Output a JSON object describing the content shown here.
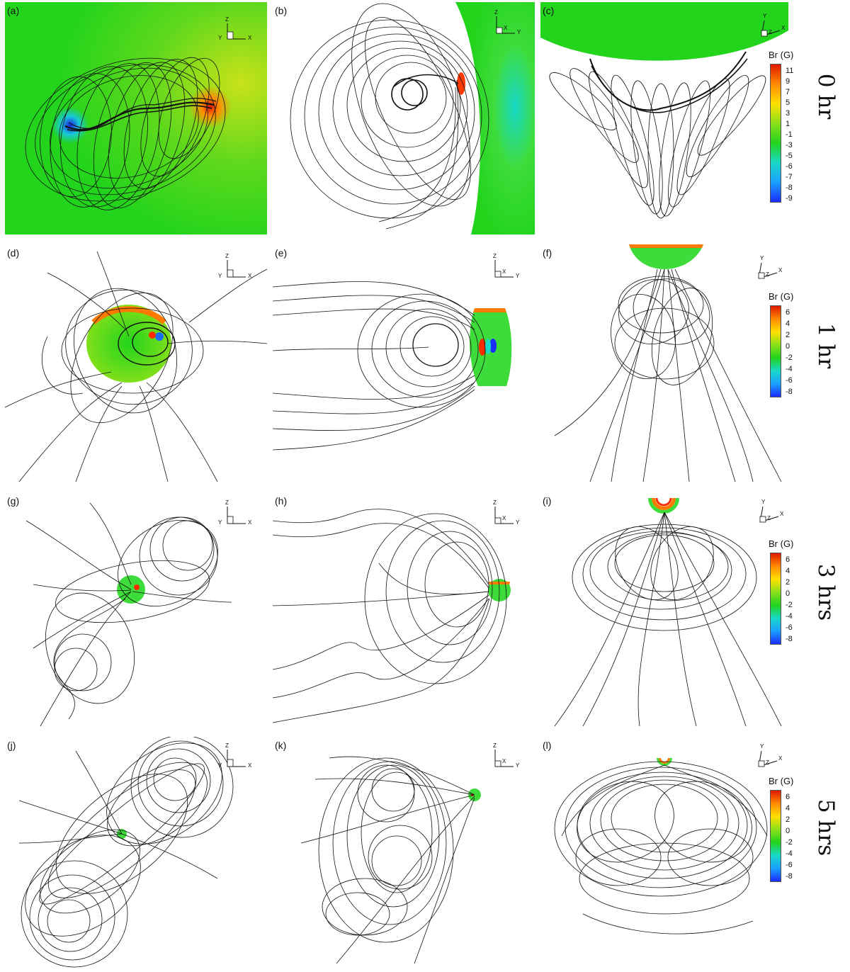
{
  "panels": [
    {
      "id": "a",
      "label": "(a)",
      "axes": [
        "Z",
        "Y",
        "X"
      ]
    },
    {
      "id": "b",
      "label": "(b)",
      "axes": [
        "Z",
        "X",
        "Y"
      ]
    },
    {
      "id": "c",
      "label": "(c)",
      "axes": [
        "Y",
        "Z",
        "X"
      ]
    },
    {
      "id": "d",
      "label": "(d)",
      "axes": [
        "Z",
        "Y",
        "X"
      ]
    },
    {
      "id": "e",
      "label": "(e)",
      "axes": [
        "Z",
        "X",
        "Y"
      ]
    },
    {
      "id": "f",
      "label": "(f)",
      "axes": [
        "Y",
        "Z",
        "X"
      ]
    },
    {
      "id": "g",
      "label": "(g)",
      "axes": [
        "Z",
        "Y",
        "X"
      ]
    },
    {
      "id": "h",
      "label": "(h)",
      "axes": [
        "Z",
        "X",
        "Y"
      ]
    },
    {
      "id": "i",
      "label": "(i)",
      "axes": [
        "Y",
        "Z",
        "X"
      ]
    },
    {
      "id": "j",
      "label": "(j)",
      "axes": [
        "Z",
        "Y",
        "X"
      ]
    },
    {
      "id": "k",
      "label": "(k)",
      "axes": [
        "Z",
        "X",
        "Y"
      ]
    },
    {
      "id": "l",
      "label": "(l)",
      "axes": [
        "Y",
        "Z",
        "X"
      ]
    }
  ],
  "colorbars": [
    {
      "title": "Br (G)",
      "ticks": [
        "11",
        "9",
        "7",
        "5",
        "3",
        "1",
        "-1",
        "-3",
        "-5",
        "-6",
        "-7",
        "-8",
        "-9"
      ]
    },
    {
      "title": "Br (G)",
      "ticks": [
        "6",
        "4",
        "2",
        "0",
        "-2",
        "-4",
        "-6",
        "-8"
      ]
    },
    {
      "title": "Br (G)",
      "ticks": [
        "6",
        "4",
        "2",
        "0",
        "-2",
        "-4",
        "-6",
        "-8"
      ]
    },
    {
      "title": "Br (G)",
      "ticks": [
        "6",
        "4",
        "2",
        "0",
        "-2",
        "-4",
        "-6",
        "-8"
      ]
    }
  ],
  "row_labels": [
    "0 hr",
    "1 hr",
    "3 hrs",
    "5 hrs"
  ],
  "colors": {
    "field_green": "#22d41c",
    "positive": "#ff2a00",
    "negative": "#1a2cff",
    "lines": "#111111"
  }
}
